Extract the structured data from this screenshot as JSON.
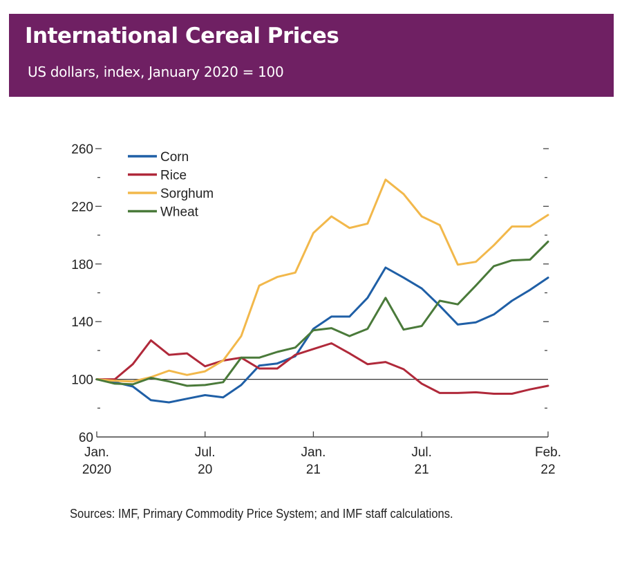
{
  "header": {
    "title": "International Cereal Prices",
    "subtitle": "US dollars, index, January 2020 = 100",
    "background_color": "#6f2063"
  },
  "source_note": "Sources: IMF, Primary Commodity Price System; and IMF staff calculations.",
  "chart_data": {
    "type": "line",
    "title": "International Cereal Prices",
    "subtitle": "US dollars, index, January 2020 = 100",
    "xlabel": "",
    "ylabel": "",
    "ylim": [
      60,
      260
    ],
    "y_major_ticks": [
      60,
      100,
      140,
      180,
      220,
      260
    ],
    "y_minor_ticks": [
      80,
      120,
      160,
      200,
      240
    ],
    "reference_line": 100,
    "grid": false,
    "legend_position": "top-left",
    "x": [
      "2020-01",
      "2020-02",
      "2020-03",
      "2020-04",
      "2020-05",
      "2020-06",
      "2020-07",
      "2020-08",
      "2020-09",
      "2020-10",
      "2020-11",
      "2020-12",
      "2021-01",
      "2021-02",
      "2021-03",
      "2021-04",
      "2021-05",
      "2021-06",
      "2021-07",
      "2021-08",
      "2021-09",
      "2021-10",
      "2021-11",
      "2021-12",
      "2022-01",
      "2022-02"
    ],
    "x_ticks": [
      {
        "index": 0,
        "line1": "Jan.",
        "line2": "2020"
      },
      {
        "index": 6,
        "line1": "Jul.",
        "line2": "20"
      },
      {
        "index": 12,
        "line1": "Jan.",
        "line2": "21"
      },
      {
        "index": 18,
        "line1": "Jul.",
        "line2": "21"
      },
      {
        "index": 25,
        "line1": "Feb.",
        "line2": "22"
      }
    ],
    "series": [
      {
        "name": "Corn",
        "color": "#1f5fa6",
        "values": [
          100,
          98,
          95,
          85.5,
          84,
          86.5,
          89,
          87.5,
          96,
          109.5,
          111,
          116,
          135,
          143.5,
          143.5,
          156.5,
          177.5,
          170.5,
          163,
          151,
          138,
          139.5,
          145,
          154.5,
          162,
          170.5
        ]
      },
      {
        "name": "Rice",
        "color": "#b0293a",
        "values": [
          100,
          100,
          110.5,
          127,
          117,
          118,
          109,
          113,
          115,
          107.5,
          107.5,
          117,
          121,
          125,
          118,
          110.5,
          112,
          107,
          97,
          90.5,
          90.5,
          91,
          90,
          90,
          93,
          95.5
        ]
      },
      {
        "name": "Sorghum",
        "color": "#f2b84b",
        "values": [
          100,
          99,
          98.5,
          101.5,
          106,
          103,
          105.5,
          113,
          130,
          165,
          171,
          174,
          201.5,
          213,
          205,
          208,
          238.5,
          228.5,
          213,
          207,
          179.5,
          181.5,
          193,
          206,
          206,
          214
        ]
      },
      {
        "name": "Wheat",
        "color": "#4a7a3a",
        "values": [
          100,
          97,
          96.5,
          101,
          98.5,
          95.5,
          96,
          98,
          115,
          115,
          119,
          122,
          134,
          135.5,
          130,
          135,
          156.5,
          134.5,
          137,
          154.5,
          152,
          165,
          178.5,
          182.5,
          183,
          195.5
        ]
      }
    ]
  }
}
